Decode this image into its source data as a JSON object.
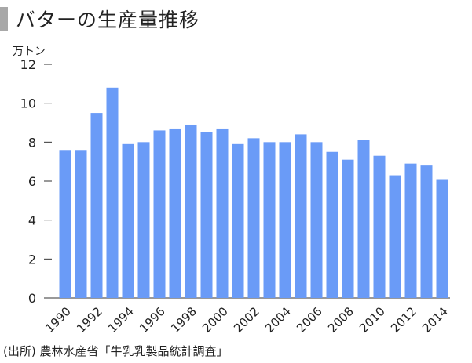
{
  "title": "バターの生産量推移",
  "source": "(出所) 農林水産省「牛乳乳製品統計調査」",
  "colors": {
    "bar": "#6a9bf7",
    "axis": "#333333",
    "title_mark": "#a8a8a8"
  },
  "chart_data": {
    "type": "bar",
    "title": "バターの生産量推移",
    "ylabel": "万トン",
    "xlabel": "",
    "ylim": [
      0,
      12
    ],
    "yticks": [
      "0",
      "2",
      "4",
      "6",
      "8",
      "10",
      "12"
    ],
    "categories": [
      "1990",
      "1991",
      "1992",
      "1993",
      "1994",
      "1995",
      "1996",
      "1997",
      "1998",
      "1999",
      "2000",
      "2001",
      "2002",
      "2003",
      "2004",
      "2005",
      "2006",
      "2007",
      "2008",
      "2009",
      "2010",
      "2011",
      "2012",
      "2013",
      "2014"
    ],
    "x_tick_labels": [
      "1990",
      "",
      "1992",
      "",
      "1994",
      "",
      "1996",
      "",
      "1998",
      "",
      "2000",
      "",
      "2002",
      "",
      "2004",
      "",
      "2006",
      "",
      "2008",
      "",
      "2010",
      "",
      "2012",
      "",
      "2014"
    ],
    "values": [
      7.6,
      7.6,
      9.5,
      10.8,
      7.9,
      8.0,
      8.6,
      8.7,
      8.9,
      8.5,
      8.7,
      7.9,
      8.2,
      8.0,
      8.0,
      8.4,
      8.0,
      7.5,
      7.1,
      8.1,
      7.3,
      6.3,
      6.9,
      6.8,
      6.1
    ],
    "grid": false,
    "legend": "none"
  }
}
